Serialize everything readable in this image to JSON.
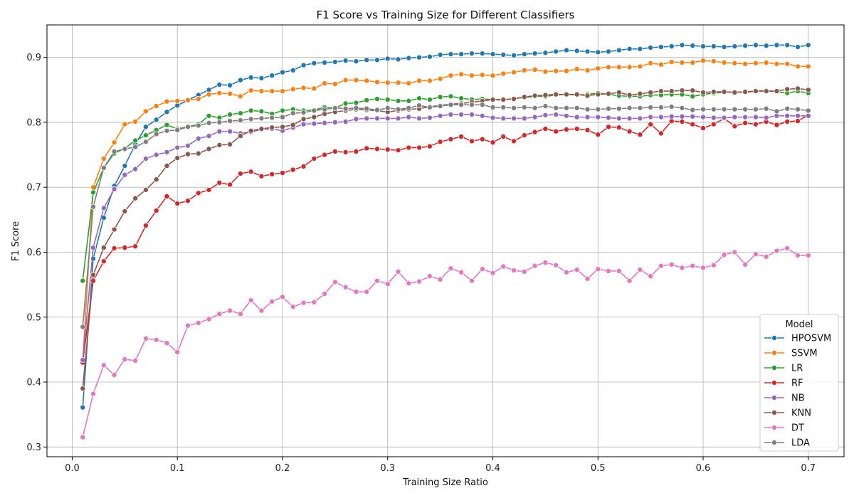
{
  "chart_data": {
    "type": "line",
    "title": "F1 Score vs Training Size for Different Classifiers",
    "xlabel": "Training Size Ratio",
    "ylabel": "F1 Score",
    "xlim": [
      -0.024,
      0.734
    ],
    "ylim": [
      0.285,
      0.95
    ],
    "xticks": [
      0.0,
      0.1,
      0.2,
      0.3,
      0.4,
      0.5,
      0.6,
      0.7
    ],
    "xtick_labels": [
      "0.0",
      "0.1",
      "0.2",
      "0.3",
      "0.4",
      "0.5",
      "0.6",
      "0.7"
    ],
    "yticks": [
      0.3,
      0.4,
      0.5,
      0.6,
      0.7,
      0.8,
      0.9
    ],
    "ytick_labels": [
      "0.3",
      "0.4",
      "0.5",
      "0.6",
      "0.7",
      "0.8",
      "0.9"
    ],
    "grid": true,
    "legend": {
      "title": "Model",
      "position": "lower-right"
    },
    "x_start": 0.01,
    "x_step": 0.01,
    "series": [
      {
        "name": "HPOSVM",
        "color": "#1f77b4",
        "values": [
          0.361,
          0.59,
          0.653,
          0.702,
          0.733,
          0.766,
          0.793,
          0.804,
          0.816,
          0.826,
          0.834,
          0.842,
          0.85,
          0.858,
          0.857,
          0.865,
          0.869,
          0.868,
          0.872,
          0.877,
          0.88,
          0.888,
          0.891,
          0.892,
          0.893,
          0.895,
          0.894,
          0.896,
          0.896,
          0.898,
          0.897,
          0.899,
          0.9,
          0.901,
          0.904,
          0.905,
          0.905,
          0.906,
          0.906,
          0.905,
          0.904,
          0.903,
          0.905,
          0.906,
          0.907,
          0.909,
          0.911,
          0.91,
          0.909,
          0.908,
          0.909,
          0.911,
          0.913,
          0.913,
          0.915,
          0.916,
          0.917,
          0.919,
          0.918,
          0.917,
          0.917,
          0.916,
          0.917,
          0.918,
          0.919,
          0.918,
          0.919,
          0.919,
          0.916,
          0.919
        ]
      },
      {
        "name": "SSVM",
        "color": "#ff7f0e",
        "values": [
          0.432,
          0.7,
          0.744,
          0.769,
          0.797,
          0.801,
          0.817,
          0.825,
          0.832,
          0.833,
          0.834,
          0.836,
          0.843,
          0.845,
          0.844,
          0.84,
          0.849,
          0.848,
          0.848,
          0.848,
          0.851,
          0.853,
          0.852,
          0.86,
          0.859,
          0.865,
          0.865,
          0.864,
          0.862,
          0.861,
          0.861,
          0.86,
          0.864,
          0.864,
          0.867,
          0.872,
          0.874,
          0.872,
          0.873,
          0.872,
          0.875,
          0.877,
          0.88,
          0.881,
          0.878,
          0.879,
          0.879,
          0.882,
          0.88,
          0.883,
          0.885,
          0.885,
          0.885,
          0.886,
          0.891,
          0.889,
          0.893,
          0.892,
          0.892,
          0.895,
          0.894,
          0.892,
          0.891,
          0.89,
          0.891,
          0.892,
          0.89,
          0.89,
          0.886,
          0.886
        ]
      },
      {
        "name": "LR",
        "color": "#2ca02c",
        "values": [
          0.556,
          0.692,
          0.73,
          0.752,
          0.76,
          0.772,
          0.78,
          0.788,
          0.796,
          0.79,
          0.793,
          0.797,
          0.81,
          0.807,
          0.812,
          0.814,
          0.818,
          0.817,
          0.813,
          0.818,
          0.82,
          0.818,
          0.819,
          0.823,
          0.822,
          0.829,
          0.83,
          0.834,
          0.836,
          0.835,
          0.833,
          0.833,
          0.837,
          0.835,
          0.839,
          0.84,
          0.837,
          0.835,
          0.836,
          0.835,
          0.834,
          0.837,
          0.838,
          0.84,
          0.84,
          0.842,
          0.843,
          0.842,
          0.843,
          0.845,
          0.843,
          0.841,
          0.84,
          0.84,
          0.842,
          0.842,
          0.843,
          0.843,
          0.84,
          0.843,
          0.845,
          0.846,
          0.847,
          0.846,
          0.848,
          0.849,
          0.847,
          0.845,
          0.848,
          0.845
        ]
      },
      {
        "name": "RF",
        "color": "#d62728",
        "values": [
          0.43,
          0.556,
          0.586,
          0.606,
          0.607,
          0.609,
          0.641,
          0.664,
          0.686,
          0.675,
          0.679,
          0.691,
          0.696,
          0.707,
          0.704,
          0.721,
          0.724,
          0.717,
          0.72,
          0.722,
          0.727,
          0.732,
          0.744,
          0.75,
          0.755,
          0.754,
          0.755,
          0.76,
          0.759,
          0.758,
          0.757,
          0.761,
          0.761,
          0.763,
          0.77,
          0.774,
          0.778,
          0.771,
          0.774,
          0.769,
          0.778,
          0.771,
          0.78,
          0.785,
          0.79,
          0.786,
          0.789,
          0.79,
          0.788,
          0.781,
          0.793,
          0.792,
          0.786,
          0.781,
          0.797,
          0.783,
          0.802,
          0.801,
          0.797,
          0.791,
          0.797,
          0.806,
          0.794,
          0.799,
          0.797,
          0.801,
          0.796,
          0.801,
          0.802,
          0.811
        ]
      },
      {
        "name": "NB",
        "color": "#9467bd",
        "values": [
          0.434,
          0.607,
          0.668,
          0.697,
          0.719,
          0.728,
          0.744,
          0.75,
          0.754,
          0.761,
          0.764,
          0.775,
          0.779,
          0.786,
          0.786,
          0.783,
          0.785,
          0.789,
          0.79,
          0.787,
          0.792,
          0.797,
          0.798,
          0.799,
          0.8,
          0.801,
          0.805,
          0.806,
          0.806,
          0.806,
          0.806,
          0.808,
          0.806,
          0.807,
          0.81,
          0.812,
          0.812,
          0.812,
          0.81,
          0.807,
          0.806,
          0.806,
          0.806,
          0.808,
          0.811,
          0.812,
          0.81,
          0.808,
          0.808,
          0.808,
          0.807,
          0.806,
          0.806,
          0.806,
          0.808,
          0.808,
          0.809,
          0.809,
          0.809,
          0.808,
          0.807,
          0.807,
          0.808,
          0.808,
          0.808,
          0.807,
          0.81,
          0.81,
          0.81,
          0.81
        ]
      },
      {
        "name": "KNN",
        "color": "#8c564b",
        "values": [
          0.39,
          0.565,
          0.607,
          0.635,
          0.663,
          0.683,
          0.696,
          0.712,
          0.733,
          0.745,
          0.751,
          0.752,
          0.759,
          0.765,
          0.766,
          0.779,
          0.787,
          0.79,
          0.792,
          0.793,
          0.796,
          0.805,
          0.808,
          0.813,
          0.816,
          0.818,
          0.82,
          0.819,
          0.818,
          0.816,
          0.818,
          0.82,
          0.821,
          0.824,
          0.826,
          0.828,
          0.829,
          0.831,
          0.833,
          0.835,
          0.835,
          0.836,
          0.839,
          0.841,
          0.842,
          0.843,
          0.843,
          0.843,
          0.841,
          0.843,
          0.844,
          0.846,
          0.842,
          0.844,
          0.846,
          0.848,
          0.848,
          0.849,
          0.849,
          0.846,
          0.847,
          0.847,
          0.846,
          0.847,
          0.848,
          0.848,
          0.848,
          0.851,
          0.852,
          0.85
        ]
      },
      {
        "name": "DT",
        "color": "#e377c2",
        "values": [
          0.315,
          0.382,
          0.426,
          0.411,
          0.435,
          0.433,
          0.467,
          0.465,
          0.46,
          0.446,
          0.487,
          0.491,
          0.497,
          0.505,
          0.51,
          0.505,
          0.526,
          0.51,
          0.524,
          0.531,
          0.516,
          0.522,
          0.523,
          0.536,
          0.554,
          0.546,
          0.539,
          0.539,
          0.556,
          0.551,
          0.57,
          0.552,
          0.555,
          0.563,
          0.558,
          0.575,
          0.569,
          0.556,
          0.574,
          0.568,
          0.578,
          0.572,
          0.57,
          0.579,
          0.584,
          0.58,
          0.569,
          0.573,
          0.559,
          0.574,
          0.571,
          0.571,
          0.556,
          0.573,
          0.563,
          0.579,
          0.581,
          0.576,
          0.579,
          0.576,
          0.58,
          0.596,
          0.6,
          0.581,
          0.597,
          0.593,
          0.602,
          0.606,
          0.595,
          0.595
        ]
      },
      {
        "name": "LDA",
        "color": "#7f7f7f",
        "values": [
          0.485,
          0.67,
          0.73,
          0.755,
          0.759,
          0.762,
          0.77,
          0.782,
          0.787,
          0.788,
          0.793,
          0.795,
          0.799,
          0.8,
          0.802,
          0.803,
          0.805,
          0.806,
          0.807,
          0.808,
          0.814,
          0.815,
          0.818,
          0.82,
          0.822,
          0.821,
          0.822,
          0.821,
          0.819,
          0.822,
          0.82,
          0.822,
          0.826,
          0.823,
          0.825,
          0.827,
          0.827,
          0.827,
          0.827,
          0.823,
          0.823,
          0.822,
          0.823,
          0.822,
          0.825,
          0.822,
          0.822,
          0.822,
          0.82,
          0.82,
          0.821,
          0.821,
          0.822,
          0.822,
          0.823,
          0.823,
          0.824,
          0.822,
          0.819,
          0.82,
          0.82,
          0.82,
          0.82,
          0.82,
          0.82,
          0.821,
          0.817,
          0.821,
          0.82,
          0.818
        ]
      }
    ]
  }
}
